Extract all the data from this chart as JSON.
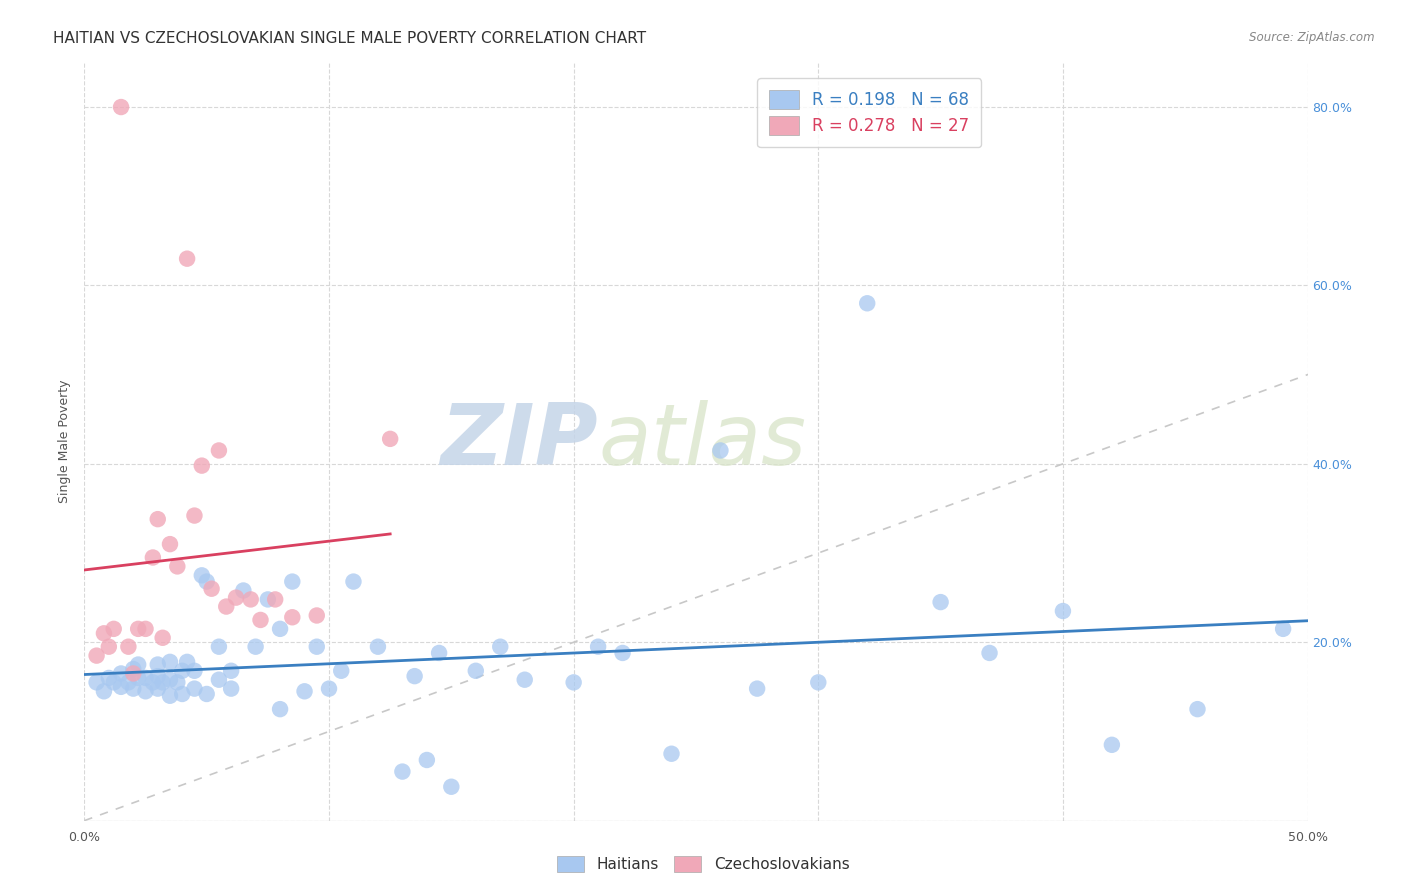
{
  "title": "HAITIAN VS CZECHOSLOVAKIAN SINGLE MALE POVERTY CORRELATION CHART",
  "source": "Source: ZipAtlas.com",
  "ylabel": "Single Male Poverty",
  "xlim": [
    0.0,
    0.5
  ],
  "ylim": [
    0.0,
    0.85
  ],
  "xticks": [
    0.0,
    0.1,
    0.2,
    0.3,
    0.4,
    0.5
  ],
  "yticks": [
    0.0,
    0.2,
    0.4,
    0.6,
    0.8
  ],
  "ytick_labels_right": [
    "",
    "20.0%",
    "40.0%",
    "60.0%",
    "80.0%"
  ],
  "legend_labels": [
    "Haitians",
    "Czechoslovakians"
  ],
  "watermark_zip": "ZIP",
  "watermark_atlas": "atlas",
  "background_color": "#ffffff",
  "grid_color": "#d8d8d8",
  "blue_color": "#a8c8f0",
  "pink_color": "#f0a8b8",
  "blue_line_color": "#3a7fc1",
  "pink_line_color": "#d94060",
  "diag_line_color": "#c8c8c8",
  "title_fontsize": 11,
  "axis_label_fontsize": 9,
  "tick_fontsize": 9,
  "haitians_x": [
    0.005,
    0.008,
    0.01,
    0.012,
    0.015,
    0.015,
    0.018,
    0.02,
    0.02,
    0.022,
    0.022,
    0.025,
    0.025,
    0.028,
    0.03,
    0.03,
    0.03,
    0.032,
    0.035,
    0.035,
    0.035,
    0.038,
    0.04,
    0.04,
    0.042,
    0.045,
    0.045,
    0.048,
    0.05,
    0.05,
    0.055,
    0.055,
    0.06,
    0.06,
    0.065,
    0.07,
    0.075,
    0.08,
    0.08,
    0.085,
    0.09,
    0.095,
    0.1,
    0.105,
    0.11,
    0.12,
    0.13,
    0.135,
    0.14,
    0.145,
    0.15,
    0.16,
    0.17,
    0.18,
    0.2,
    0.21,
    0.22,
    0.24,
    0.26,
    0.275,
    0.3,
    0.32,
    0.35,
    0.37,
    0.4,
    0.42,
    0.455,
    0.49
  ],
  "haitians_y": [
    0.155,
    0.145,
    0.16,
    0.155,
    0.15,
    0.165,
    0.155,
    0.148,
    0.17,
    0.16,
    0.175,
    0.145,
    0.16,
    0.155,
    0.148,
    0.162,
    0.175,
    0.155,
    0.14,
    0.158,
    0.178,
    0.155,
    0.142,
    0.168,
    0.178,
    0.148,
    0.168,
    0.275,
    0.142,
    0.268,
    0.158,
    0.195,
    0.148,
    0.168,
    0.258,
    0.195,
    0.248,
    0.125,
    0.215,
    0.268,
    0.145,
    0.195,
    0.148,
    0.168,
    0.268,
    0.195,
    0.055,
    0.162,
    0.068,
    0.188,
    0.038,
    0.168,
    0.195,
    0.158,
    0.155,
    0.195,
    0.188,
    0.075,
    0.415,
    0.148,
    0.155,
    0.58,
    0.245,
    0.188,
    0.235,
    0.085,
    0.125,
    0.215
  ],
  "czechoslovakians_x": [
    0.005,
    0.008,
    0.01,
    0.012,
    0.015,
    0.018,
    0.02,
    0.022,
    0.025,
    0.028,
    0.03,
    0.032,
    0.035,
    0.038,
    0.042,
    0.045,
    0.048,
    0.052,
    0.055,
    0.058,
    0.062,
    0.068,
    0.072,
    0.078,
    0.085,
    0.095,
    0.125
  ],
  "czechoslovakians_y": [
    0.185,
    0.21,
    0.195,
    0.215,
    0.8,
    0.195,
    0.165,
    0.215,
    0.215,
    0.295,
    0.338,
    0.205,
    0.31,
    0.285,
    0.63,
    0.342,
    0.398,
    0.26,
    0.415,
    0.24,
    0.25,
    0.248,
    0.225,
    0.248,
    0.228,
    0.23,
    0.428
  ]
}
